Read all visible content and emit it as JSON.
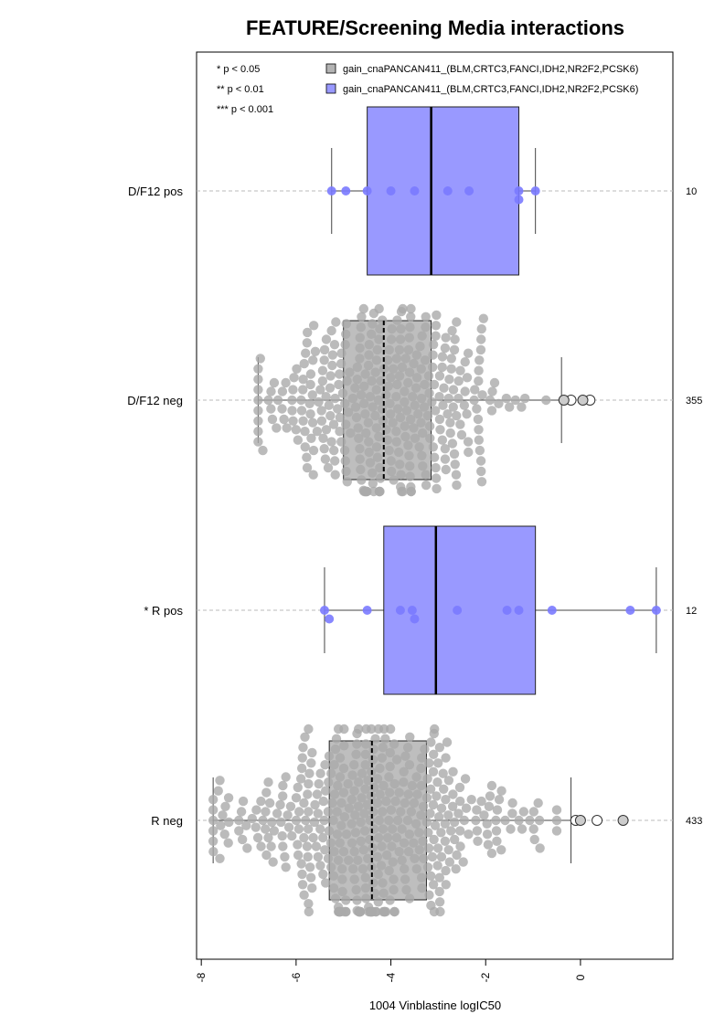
{
  "chart_data": {
    "type": "box",
    "title": "FEATURE/Screening Media interactions",
    "xlabel": "1004 Vinblastine logIC50",
    "ylabel": "",
    "xlim": [
      -8.1,
      1.95
    ],
    "x_ticks": [
      -8,
      -6,
      -4,
      -2,
      0
    ],
    "x_tick_labels": [
      "-8",
      "-6",
      "-4",
      "-2",
      "0"
    ],
    "significance_legend": [
      "* p < 0.05",
      "** p < 0.01",
      "*** p < 0.001"
    ],
    "legend": [
      {
        "label": "gain_cnaPANCAN411_(BLM,CRTC3,FANCI,IDH2,NR2F2,PCSK6)",
        "color": "#b3b3b3"
      },
      {
        "label": "gain_cnaPANCAN411_(BLM,CRTC3,FANCI,IDH2,NR2F2,PCSK6)",
        "color": "#9999ff"
      }
    ],
    "legend_position": "top-right",
    "grid": false,
    "colors": {
      "pos_box": "#9999ff",
      "pos_point": "#7a7aff",
      "neg_box": "#bebebe",
      "neg_point": "#aaaaaa",
      "grid_line": "#bbbbbb"
    },
    "groups": [
      {
        "label": "D/F12 pos",
        "count": "10",
        "group": "pos",
        "whisker_low": -5.25,
        "q1": -4.5,
        "median": -3.15,
        "q3": -1.3,
        "whisker_high": -0.95,
        "points": [
          -5.25,
          -4.95,
          -4.5,
          -4.0,
          -3.5,
          -2.8,
          -2.35,
          -1.3,
          -1.3,
          -0.95
        ],
        "outliers": []
      },
      {
        "label": "D/F12 neg",
        "count": "355",
        "group": "neg",
        "whisker_low": -6.8,
        "q1": -5.0,
        "median": -4.15,
        "q3": -3.15,
        "whisker_high": -0.4,
        "n_points": 355,
        "outliers": [
          0.2,
          0.05,
          -0.2,
          -0.35
        ]
      },
      {
        "label": "* R pos",
        "count": "12",
        "group": "pos",
        "whisker_low": -5.4,
        "q1": -4.15,
        "median": -3.05,
        "q3": -0.95,
        "whisker_high": 1.6,
        "points": [
          -5.4,
          -5.3,
          -4.5,
          -3.8,
          -3.55,
          -3.5,
          -2.6,
          -1.55,
          -1.3,
          -0.6,
          1.05,
          1.6
        ],
        "outliers": []
      },
      {
        "label": "R neg",
        "count": "433",
        "group": "neg",
        "whisker_low": -7.75,
        "q1": -5.3,
        "median": -4.4,
        "q3": -3.25,
        "whisker_high": -0.2,
        "n_points": 433,
        "outliers": [
          -0.1,
          0.0,
          0.35,
          0.9
        ]
      }
    ]
  }
}
